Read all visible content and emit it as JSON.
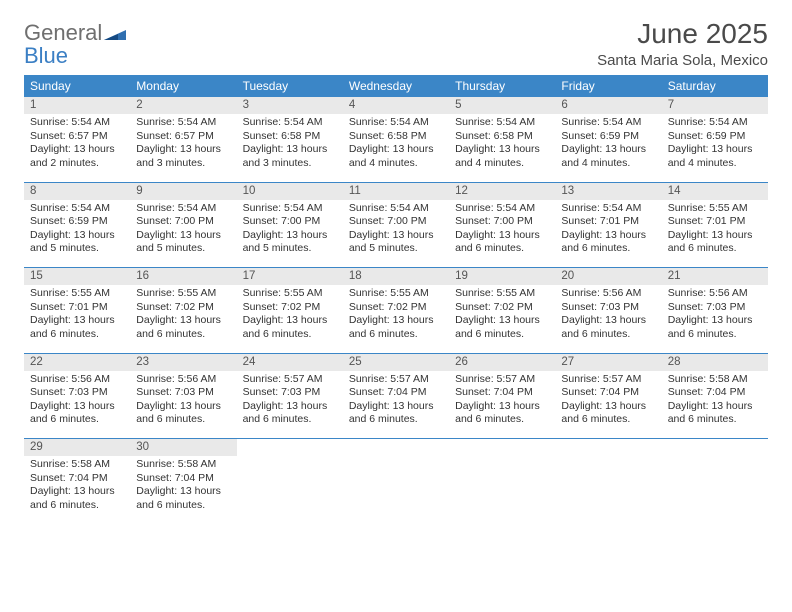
{
  "brand": {
    "general": "General",
    "blue": "Blue"
  },
  "header": {
    "month_title": "June 2025",
    "location": "Santa Maria Sola, Mexico"
  },
  "colors": {
    "header_bg": "#3b86c7",
    "header_text": "#ffffff",
    "daynum_bg": "#e9e9e9",
    "rule": "#3b86c7",
    "logo_gray": "#6f6f6f",
    "logo_blue": "#3b7fc4"
  },
  "day_names": [
    "Sunday",
    "Monday",
    "Tuesday",
    "Wednesday",
    "Thursday",
    "Friday",
    "Saturday"
  ],
  "weeks": [
    [
      {
        "n": "1",
        "sr": "Sunrise: 5:54 AM",
        "ss": "Sunset: 6:57 PM",
        "dl": "Daylight: 13 hours and 2 minutes."
      },
      {
        "n": "2",
        "sr": "Sunrise: 5:54 AM",
        "ss": "Sunset: 6:57 PM",
        "dl": "Daylight: 13 hours and 3 minutes."
      },
      {
        "n": "3",
        "sr": "Sunrise: 5:54 AM",
        "ss": "Sunset: 6:58 PM",
        "dl": "Daylight: 13 hours and 3 minutes."
      },
      {
        "n": "4",
        "sr": "Sunrise: 5:54 AM",
        "ss": "Sunset: 6:58 PM",
        "dl": "Daylight: 13 hours and 4 minutes."
      },
      {
        "n": "5",
        "sr": "Sunrise: 5:54 AM",
        "ss": "Sunset: 6:58 PM",
        "dl": "Daylight: 13 hours and 4 minutes."
      },
      {
        "n": "6",
        "sr": "Sunrise: 5:54 AM",
        "ss": "Sunset: 6:59 PM",
        "dl": "Daylight: 13 hours and 4 minutes."
      },
      {
        "n": "7",
        "sr": "Sunrise: 5:54 AM",
        "ss": "Sunset: 6:59 PM",
        "dl": "Daylight: 13 hours and 4 minutes."
      }
    ],
    [
      {
        "n": "8",
        "sr": "Sunrise: 5:54 AM",
        "ss": "Sunset: 6:59 PM",
        "dl": "Daylight: 13 hours and 5 minutes."
      },
      {
        "n": "9",
        "sr": "Sunrise: 5:54 AM",
        "ss": "Sunset: 7:00 PM",
        "dl": "Daylight: 13 hours and 5 minutes."
      },
      {
        "n": "10",
        "sr": "Sunrise: 5:54 AM",
        "ss": "Sunset: 7:00 PM",
        "dl": "Daylight: 13 hours and 5 minutes."
      },
      {
        "n": "11",
        "sr": "Sunrise: 5:54 AM",
        "ss": "Sunset: 7:00 PM",
        "dl": "Daylight: 13 hours and 5 minutes."
      },
      {
        "n": "12",
        "sr": "Sunrise: 5:54 AM",
        "ss": "Sunset: 7:00 PM",
        "dl": "Daylight: 13 hours and 6 minutes."
      },
      {
        "n": "13",
        "sr": "Sunrise: 5:54 AM",
        "ss": "Sunset: 7:01 PM",
        "dl": "Daylight: 13 hours and 6 minutes."
      },
      {
        "n": "14",
        "sr": "Sunrise: 5:55 AM",
        "ss": "Sunset: 7:01 PM",
        "dl": "Daylight: 13 hours and 6 minutes."
      }
    ],
    [
      {
        "n": "15",
        "sr": "Sunrise: 5:55 AM",
        "ss": "Sunset: 7:01 PM",
        "dl": "Daylight: 13 hours and 6 minutes."
      },
      {
        "n": "16",
        "sr": "Sunrise: 5:55 AM",
        "ss": "Sunset: 7:02 PM",
        "dl": "Daylight: 13 hours and 6 minutes."
      },
      {
        "n": "17",
        "sr": "Sunrise: 5:55 AM",
        "ss": "Sunset: 7:02 PM",
        "dl": "Daylight: 13 hours and 6 minutes."
      },
      {
        "n": "18",
        "sr": "Sunrise: 5:55 AM",
        "ss": "Sunset: 7:02 PM",
        "dl": "Daylight: 13 hours and 6 minutes."
      },
      {
        "n": "19",
        "sr": "Sunrise: 5:55 AM",
        "ss": "Sunset: 7:02 PM",
        "dl": "Daylight: 13 hours and 6 minutes."
      },
      {
        "n": "20",
        "sr": "Sunrise: 5:56 AM",
        "ss": "Sunset: 7:03 PM",
        "dl": "Daylight: 13 hours and 6 minutes."
      },
      {
        "n": "21",
        "sr": "Sunrise: 5:56 AM",
        "ss": "Sunset: 7:03 PM",
        "dl": "Daylight: 13 hours and 6 minutes."
      }
    ],
    [
      {
        "n": "22",
        "sr": "Sunrise: 5:56 AM",
        "ss": "Sunset: 7:03 PM",
        "dl": "Daylight: 13 hours and 6 minutes."
      },
      {
        "n": "23",
        "sr": "Sunrise: 5:56 AM",
        "ss": "Sunset: 7:03 PM",
        "dl": "Daylight: 13 hours and 6 minutes."
      },
      {
        "n": "24",
        "sr": "Sunrise: 5:57 AM",
        "ss": "Sunset: 7:03 PM",
        "dl": "Daylight: 13 hours and 6 minutes."
      },
      {
        "n": "25",
        "sr": "Sunrise: 5:57 AM",
        "ss": "Sunset: 7:04 PM",
        "dl": "Daylight: 13 hours and 6 minutes."
      },
      {
        "n": "26",
        "sr": "Sunrise: 5:57 AM",
        "ss": "Sunset: 7:04 PM",
        "dl": "Daylight: 13 hours and 6 minutes."
      },
      {
        "n": "27",
        "sr": "Sunrise: 5:57 AM",
        "ss": "Sunset: 7:04 PM",
        "dl": "Daylight: 13 hours and 6 minutes."
      },
      {
        "n": "28",
        "sr": "Sunrise: 5:58 AM",
        "ss": "Sunset: 7:04 PM",
        "dl": "Daylight: 13 hours and 6 minutes."
      }
    ],
    [
      {
        "n": "29",
        "sr": "Sunrise: 5:58 AM",
        "ss": "Sunset: 7:04 PM",
        "dl": "Daylight: 13 hours and 6 minutes."
      },
      {
        "n": "30",
        "sr": "Sunrise: 5:58 AM",
        "ss": "Sunset: 7:04 PM",
        "dl": "Daylight: 13 hours and 6 minutes."
      },
      null,
      null,
      null,
      null,
      null
    ]
  ]
}
